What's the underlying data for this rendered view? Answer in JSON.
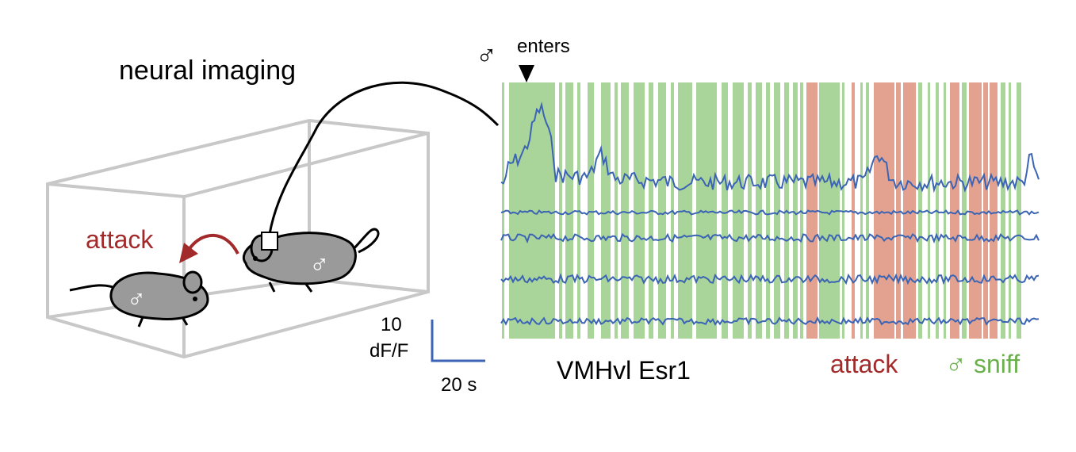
{
  "title": "neural imaging",
  "labels": {
    "male_symbol": "♂",
    "enters": "enters",
    "attack_arrow": "attack",
    "scale_y_value": "10",
    "scale_y_unit": "dF/F",
    "scale_x": "20 s",
    "population": "VMHvl Esr1",
    "legend_attack": "attack",
    "legend_sniff_symbol": "♂",
    "legend_sniff": "sniff"
  },
  "colors": {
    "attack": "#a32a2a",
    "attack_band": "#e3a28f",
    "sniff": "#6ab04c",
    "sniff_band": "#a9d49a",
    "trace": "#3c64b4",
    "box": "#c8c8c8",
    "mouse": "#9a9a9a"
  },
  "icons": {
    "mouse_left": "mouse-icon",
    "mouse_right": "mouse-icon",
    "implant": "fiber-implant-icon",
    "cable": "fiber-cable-icon",
    "arena": "arena-box-icon"
  }
}
